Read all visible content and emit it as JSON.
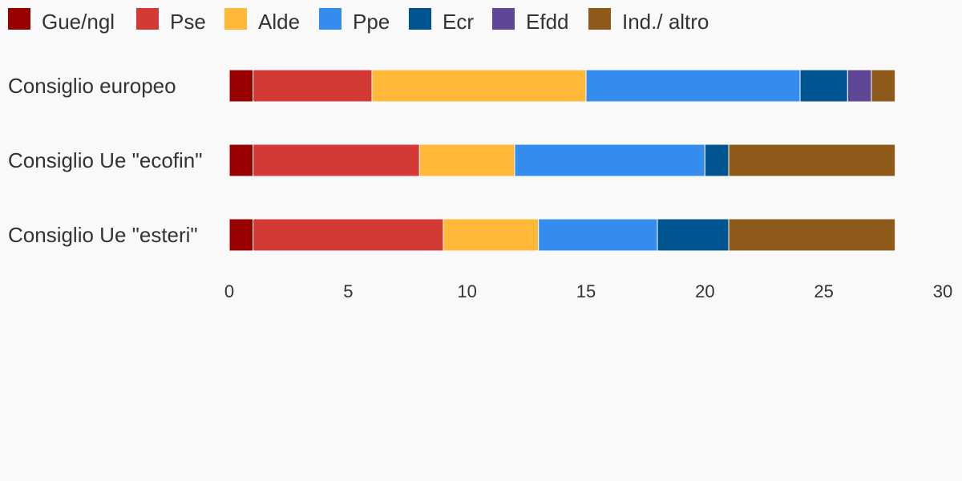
{
  "chart_data": {
    "type": "bar",
    "orientation": "horizontal",
    "stacked": true,
    "categories": [
      "Consiglio europeo",
      "Consiglio Ue \"ecofin\"",
      "Consiglio Ue \"esteri\""
    ],
    "series": [
      {
        "name": "Gue/ngl",
        "color": "#990000",
        "values": [
          1,
          1,
          1
        ]
      },
      {
        "name": "Pse",
        "color": "#d33a35",
        "values": [
          5,
          7,
          8
        ]
      },
      {
        "name": "Alde",
        "color": "#ffb838",
        "values": [
          9,
          4,
          4
        ]
      },
      {
        "name": "Ppe",
        "color": "#348cef",
        "values": [
          9,
          8,
          5
        ]
      },
      {
        "name": "Ecr",
        "color": "#005591",
        "values": [
          2,
          1,
          3
        ]
      },
      {
        "name": "Efdd",
        "color": "#5f4696",
        "values": [
          1,
          0,
          0
        ]
      },
      {
        "name": "Ind./ altro",
        "color": "#8e5a1a",
        "values": [
          1,
          7,
          7
        ]
      }
    ],
    "xlim": [
      0,
      30
    ],
    "xticks": [
      0,
      5,
      10,
      15,
      20,
      25,
      30
    ],
    "grid": false,
    "legend_position": "top-left"
  }
}
